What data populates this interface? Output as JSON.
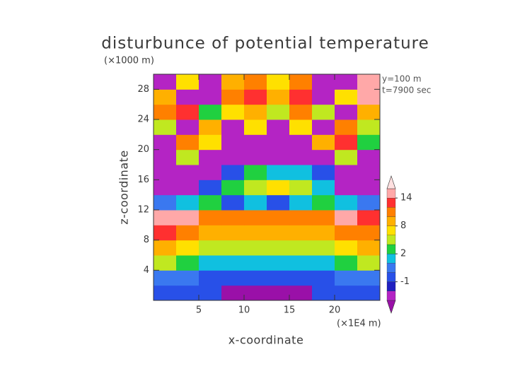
{
  "chart_data": {
    "type": "contour",
    "title": "disturbunce of potential temperature",
    "y_unit_label": "(×1000 m)",
    "x_unit_label": "(×1E4 m)",
    "annotations": [
      "y=100 m",
      "t=7900 sec"
    ],
    "xlabel": "x-coordinate",
    "ylabel": "z-coordinate",
    "xlim": [
      0,
      25
    ],
    "ylim": [
      0,
      30
    ],
    "xticks": [
      5,
      10,
      15,
      20
    ],
    "yticks": [
      4,
      8,
      12,
      16,
      20,
      24,
      28
    ],
    "x": [
      1.25,
      3.75,
      6.25,
      8.75,
      11.25,
      13.75,
      16.25,
      18.75,
      21.25,
      23.75
    ],
    "y": [
      1,
      3,
      5,
      7,
      9,
      11,
      13,
      15,
      17,
      19,
      21,
      23,
      25,
      27,
      29
    ],
    "z": [
      [
        -0.5,
        -0.5,
        -0.5,
        -4,
        -4,
        -4,
        -4,
        -0.5,
        -0.5,
        -0.5
      ],
      [
        0.5,
        0,
        -0.5,
        -0.5,
        -0.5,
        -0.5,
        -0.5,
        -0.5,
        0,
        0.5
      ],
      [
        5,
        3,
        1.5,
        1.5,
        1.5,
        1.5,
        1.5,
        1.5,
        3,
        5
      ],
      [
        9,
        7,
        5,
        5,
        5,
        5,
        5,
        5,
        7,
        9
      ],
      [
        13,
        11,
        9,
        9,
        9,
        9,
        9,
        9,
        11,
        11
      ],
      [
        15,
        15,
        11,
        11,
        11,
        11,
        11,
        11,
        15,
        13
      ],
      [
        0,
        1.5,
        3,
        -0.5,
        1,
        -0.5,
        1,
        3,
        1.5,
        0
      ],
      [
        -2.5,
        -2.5,
        -0.5,
        3,
        5,
        7,
        5,
        1.5,
        -2.5,
        -2.5
      ],
      [
        -2.5,
        -2.5,
        -2.5,
        -0.5,
        3,
        1.5,
        1.5,
        -0.5,
        -2.5,
        -2.5
      ],
      [
        -2.5,
        5,
        -2.5,
        -2.5,
        -2.5,
        -2.5,
        -2.5,
        -2.5,
        5,
        -2.5
      ],
      [
        -2.5,
        11,
        7,
        -2.5,
        -2.5,
        -2.5,
        -2.5,
        9,
        13,
        3
      ],
      [
        5,
        -2.5,
        9,
        -2.5,
        7,
        -2.5,
        7,
        -2.5,
        11,
        5
      ],
      [
        11,
        13,
        3,
        7,
        9,
        5,
        11,
        5,
        -2.5,
        9
      ],
      [
        9,
        -2.5,
        -2.5,
        11,
        13,
        9,
        13,
        -2.5,
        7,
        15
      ],
      [
        -2.5,
        7,
        -2.5,
        9,
        11,
        7,
        11,
        -2.5,
        -2.5,
        15
      ]
    ],
    "levels": [
      -3,
      -2,
      -1,
      0,
      1,
      2,
      4,
      6,
      8,
      10,
      12,
      14,
      16
    ],
    "colors": [
      "#9a10a8",
      "#b424c4",
      "#2020c0",
      "#2850e8",
      "#3a78f0",
      "#10c0e0",
      "#20d040",
      "#c0e820",
      "#ffe000",
      "#ffb000",
      "#ff8000",
      "#ff3030",
      "#ffa8a8",
      "#ffe0e0"
    ],
    "colorbar_ticks": [
      -1,
      2,
      8,
      14
    ]
  }
}
